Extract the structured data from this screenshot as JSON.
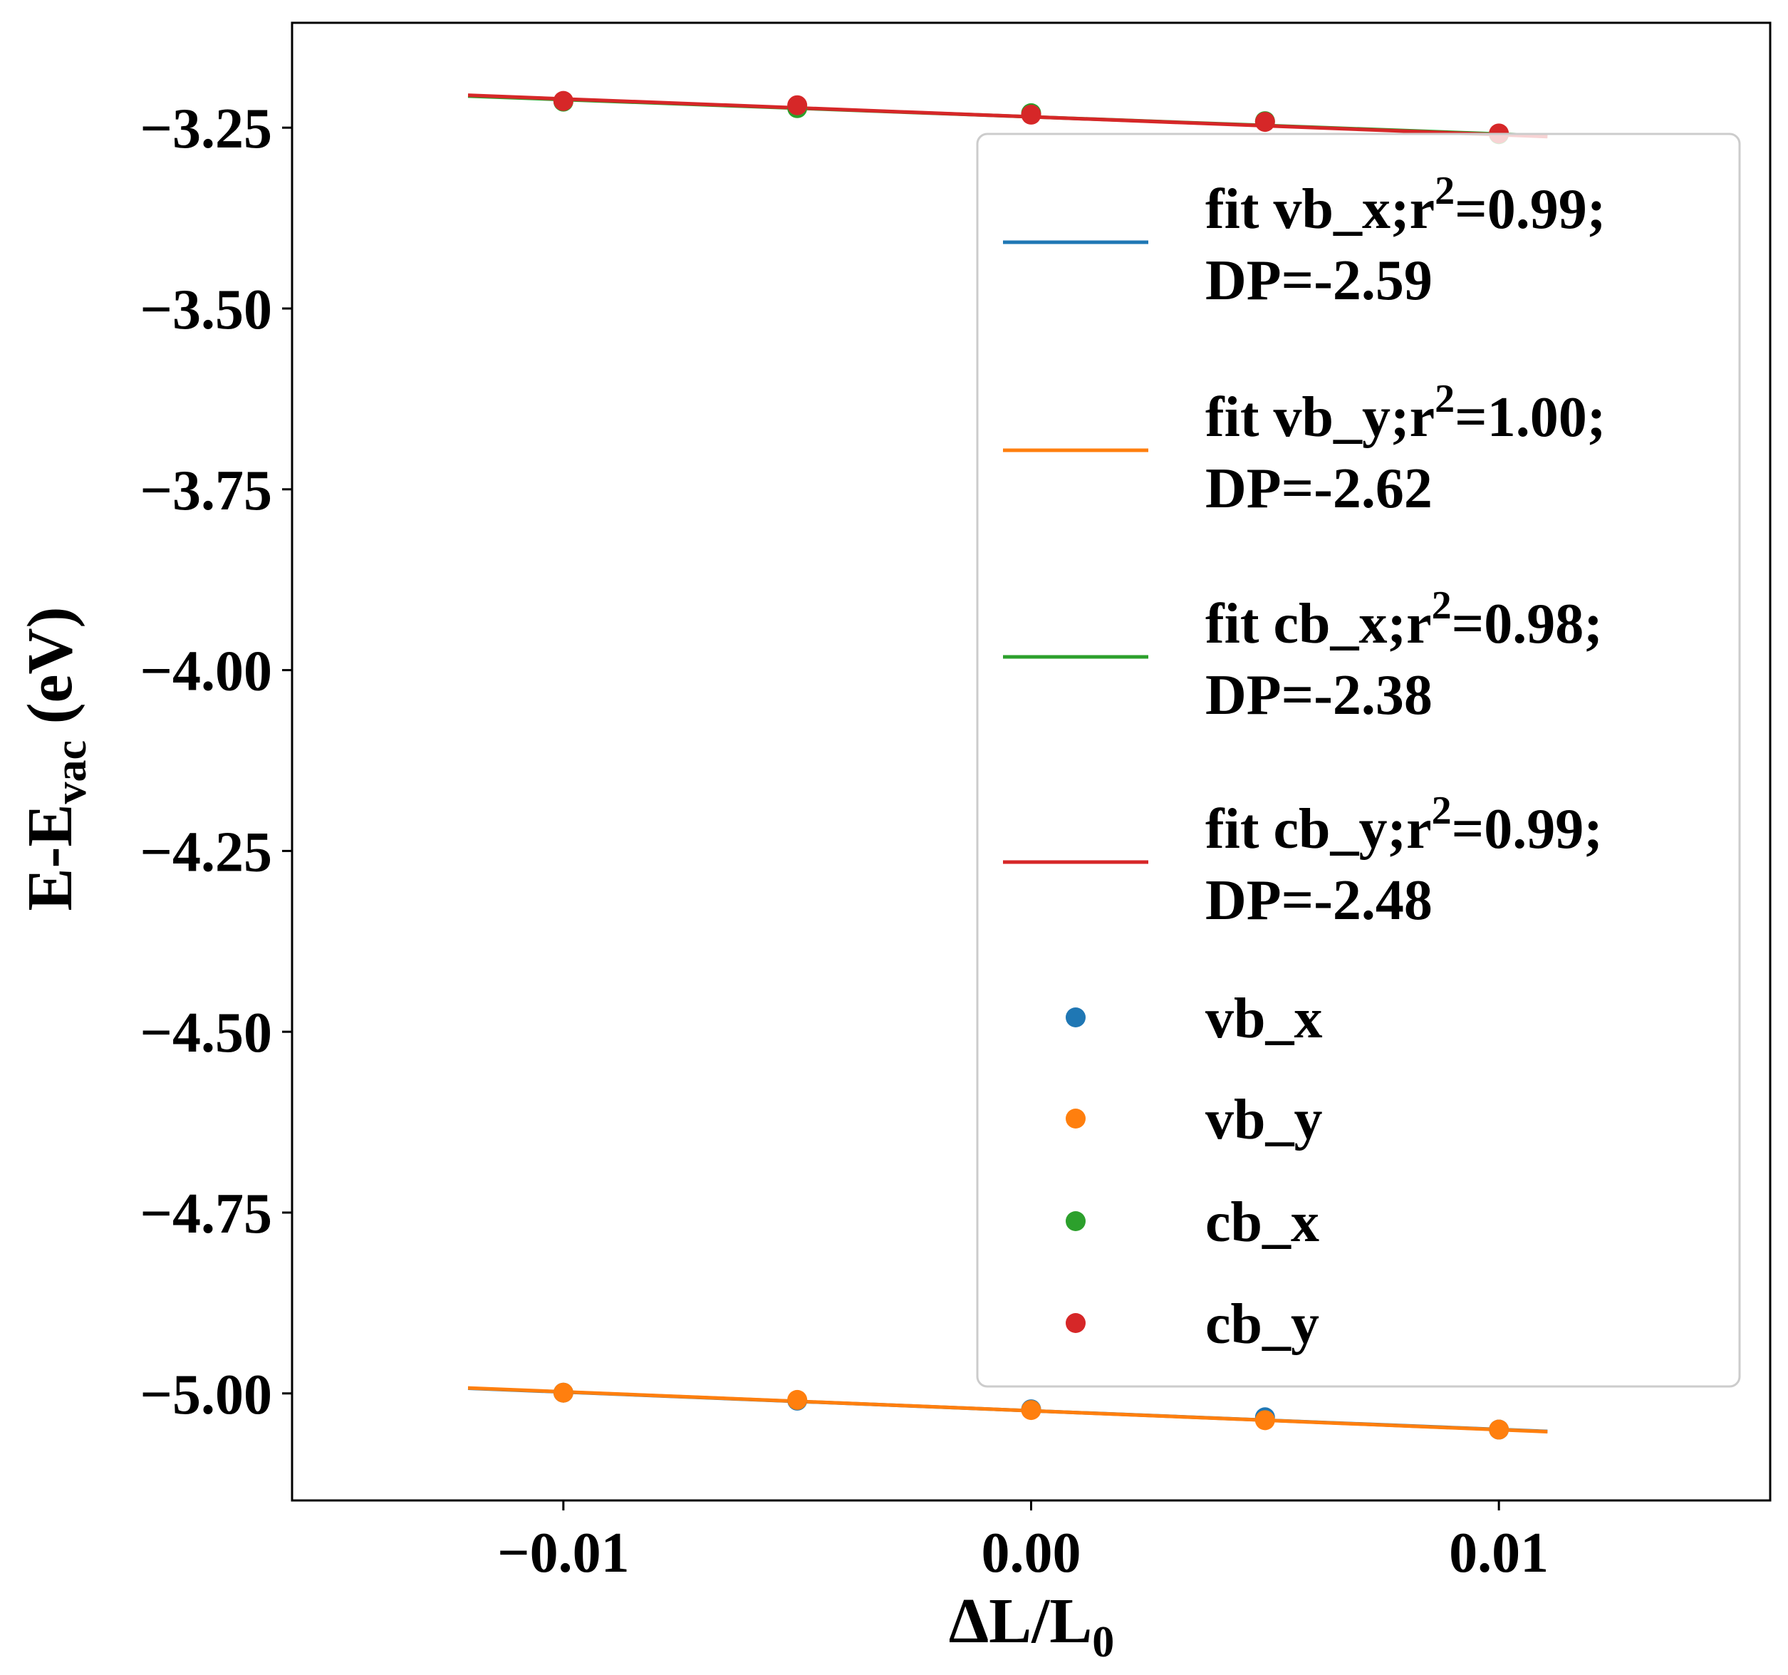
{
  "chart_data": {
    "type": "scatter",
    "title": "",
    "xlabel": "ΔL/L",
    "xlabel_sub": "0",
    "ylabel": "E-E",
    "ylabel_sub": "vac",
    "ylabel_unit": " (eV)",
    "xlim": [
      -0.0158,
      0.0158
    ],
    "ylim": [
      -5.148,
      -3.105
    ],
    "xticks": [
      -0.01,
      0.0,
      0.01
    ],
    "xtick_labels": [
      "−0.01",
      "0.00",
      "0.01"
    ],
    "yticks": [
      -3.25,
      -3.5,
      -3.75,
      -4.0,
      -4.25,
      -4.5,
      -4.75,
      -5.0
    ],
    "ytick_labels": [
      "−3.25",
      "−3.50",
      "−3.75",
      "−4.00",
      "−4.25",
      "−4.50",
      "−4.75",
      "−5.00"
    ],
    "grid": false,
    "legend_position": "upper right",
    "fit_range": [
      -0.012,
      0.011
    ],
    "series": [
      {
        "name": "vb_x",
        "color": "#1f77b4",
        "x": [
          -0.01,
          -0.005,
          0.0,
          0.005,
          0.01
        ],
        "y": [
          -4.999,
          -5.01,
          -5.022,
          -5.033,
          -5.05
        ],
        "fit": {
          "label_line1": "fit vb_x;r",
          "label_sup": "2",
          "label_after_sup": "=0.99;",
          "label_line2": "DP=-2.59",
          "slope": -2.59,
          "intercept": -5.024
        }
      },
      {
        "name": "vb_y",
        "color": "#ff7f0e",
        "x": [
          -0.01,
          -0.005,
          0.0,
          0.005,
          0.01
        ],
        "y": [
          -4.999,
          -5.009,
          -5.023,
          -5.037,
          -5.05
        ],
        "fit": {
          "label_line1": "fit vb_y;r",
          "label_sup": "2",
          "label_after_sup": "=1.00;",
          "label_line2": "DP=-2.62",
          "slope": -2.62,
          "intercept": -5.024
        }
      },
      {
        "name": "cb_x",
        "color": "#2ca02c",
        "x": [
          -0.01,
          -0.005,
          0.0,
          0.005,
          0.01
        ],
        "y": [
          -3.214,
          -3.223,
          -3.23,
          -3.241,
          -3.259
        ],
        "fit": {
          "label_line1": "fit cb_x;r",
          "label_sup": "2",
          "label_after_sup": "=0.98;",
          "label_line2": "DP=-2.38",
          "slope": -2.38,
          "intercept": -3.235
        }
      },
      {
        "name": "cb_y",
        "color": "#d62728",
        "x": [
          -0.01,
          -0.005,
          0.0,
          0.005,
          0.01
        ],
        "y": [
          -3.213,
          -3.219,
          -3.232,
          -3.242,
          -3.258
        ],
        "fit": {
          "label_line1": "fit cb_y;r",
          "label_sup": "2",
          "label_after_sup": "=0.99;",
          "label_line2": "DP=-2.48",
          "slope": -2.48,
          "intercept": -3.235
        }
      }
    ]
  }
}
